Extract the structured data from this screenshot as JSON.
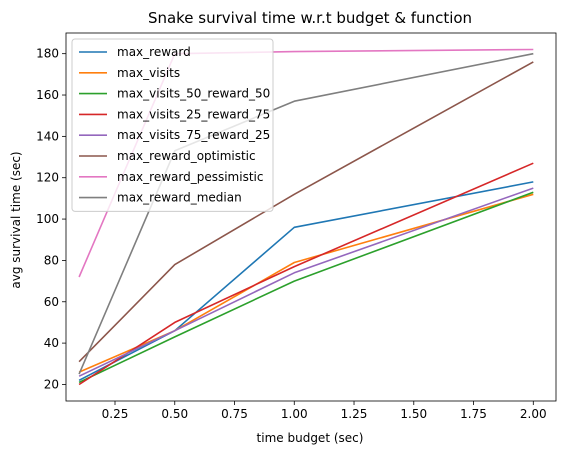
{
  "chart_data": {
    "type": "line",
    "title": "Snake survival time w.r.t budget & function",
    "xlabel": "time budget (sec)",
    "ylabel": "avg survival time (sec)",
    "xlim": [
      0.045,
      2.095
    ],
    "ylim": [
      12,
      190
    ],
    "x_ticks": [
      0.25,
      0.5,
      0.75,
      1.0,
      1.25,
      1.5,
      1.75,
      2.0
    ],
    "x_tick_labels": [
      "0.25",
      "0.50",
      "0.75",
      "1.00",
      "1.25",
      "1.50",
      "1.75",
      "2.00"
    ],
    "y_ticks": [
      20,
      40,
      60,
      80,
      100,
      120,
      140,
      160,
      180
    ],
    "y_tick_labels": [
      "20",
      "40",
      "60",
      "80",
      "100",
      "120",
      "140",
      "160",
      "180"
    ],
    "grid": false,
    "legend_position": "top-left",
    "x": [
      0.1,
      0.5,
      1.0,
      2.0
    ],
    "series": [
      {
        "name": "max_reward",
        "color": "#1f77b4",
        "values": [
          22,
          46,
          96,
          118
        ]
      },
      {
        "name": "max_visits",
        "color": "#ff7f0e",
        "values": [
          26,
          46,
          79,
          112
        ]
      },
      {
        "name": "max_visits_50_reward_50",
        "color": "#2ca02c",
        "values": [
          21,
          43,
          70,
          113
        ]
      },
      {
        "name": "max_visits_25_reward_75",
        "color": "#d62728",
        "values": [
          20,
          50,
          77,
          127
        ]
      },
      {
        "name": "max_visits_75_reward_25",
        "color": "#9467bd",
        "values": [
          24,
          46,
          74,
          115
        ]
      },
      {
        "name": "max_reward_optimistic",
        "color": "#8c564b",
        "values": [
          31,
          78,
          112,
          176
        ]
      },
      {
        "name": "max_reward_pessimistic",
        "color": "#e377c2",
        "values": [
          72,
          180,
          181,
          182
        ]
      },
      {
        "name": "max_reward_median",
        "color": "#7f7f7f",
        "values": [
          25,
          133,
          157,
          180
        ]
      }
    ]
  }
}
